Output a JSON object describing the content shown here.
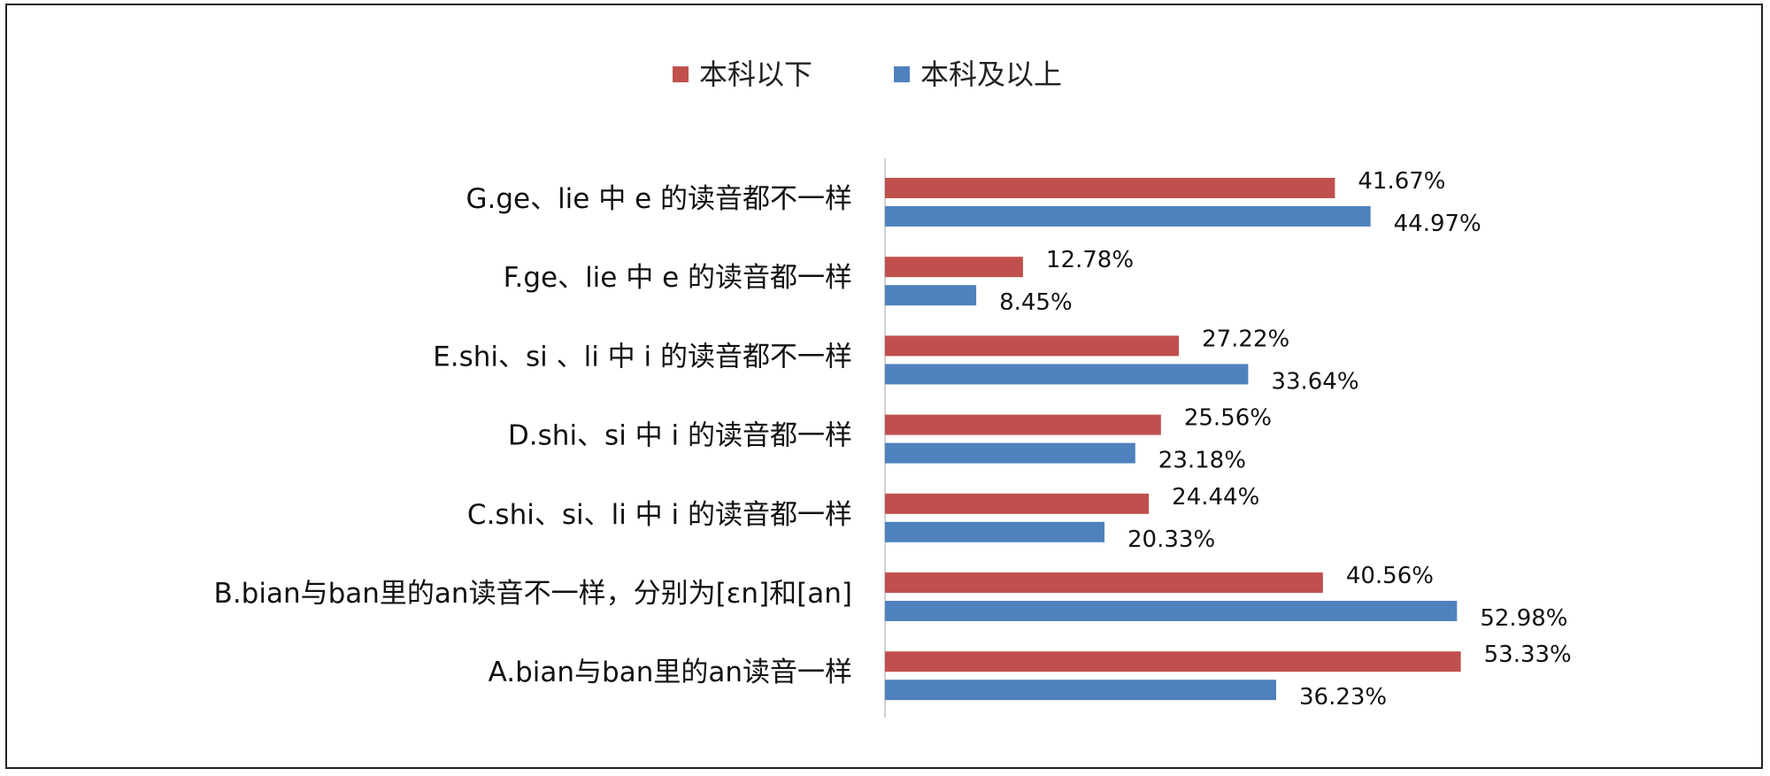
{
  "chart_data": {
    "type": "bar",
    "orientation": "horizontal",
    "categories": [
      "G.ge、lie 中 e 的读音都不一样",
      "F.ge、lie 中 e 的读音都一样",
      "E.shi、si 、li 中 i 的读音都不一样",
      "D.shi、si 中 i 的读音都一样",
      "C.shi、si、li 中 i 的读音都一样",
      "B.bian与ban里的an读音不一样，分别为[εn]和[an]",
      "A.bian与ban里的an读音一样"
    ],
    "series": [
      {
        "name": "本科以下",
        "color": "#c0504d",
        "values": [
          41.67,
          12.78,
          27.22,
          25.56,
          24.44,
          40.56,
          53.33
        ],
        "labels": [
          "41.67%",
          "12.78%",
          "27.22%",
          "25.56%",
          "24.44%",
          "40.56%",
          "53.33%"
        ]
      },
      {
        "name": "本科及以上",
        "color": "#4f81bd",
        "values": [
          44.97,
          8.45,
          33.64,
          23.18,
          20.33,
          52.98,
          36.23
        ],
        "labels": [
          "44.97%",
          "8.45%",
          "33.64%",
          "23.18%",
          "20.33%",
          "52.98%",
          "36.23%"
        ]
      }
    ],
    "xlim": [
      0,
      60
    ],
    "grid": false,
    "legend_position": "top"
  }
}
